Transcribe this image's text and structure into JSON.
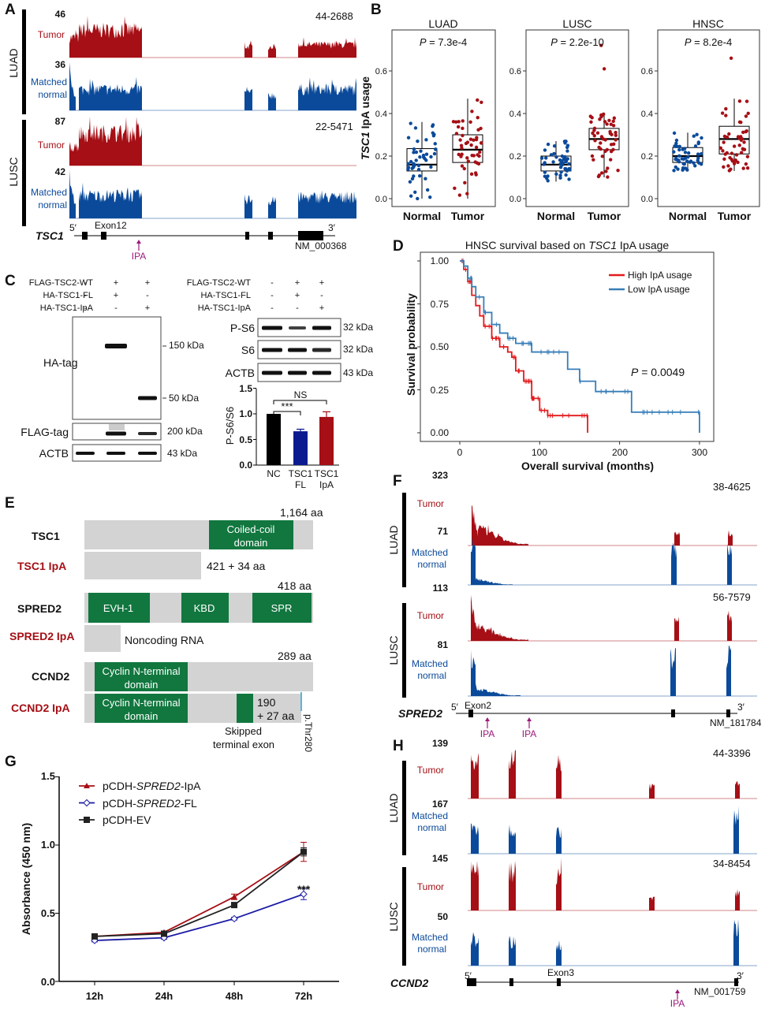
{
  "colors": {
    "tumor": "#a50f15",
    "normal": "#0b4a9a",
    "domain": "#11773f",
    "protein_bar": "#d3d3d3",
    "ipa_arrow": "#9c1a7a",
    "km_high": "#e41a1c",
    "km_low": "#377eb8",
    "bar_nc": "#000000",
    "bar_fl": "#0b1a8f",
    "bar_ipa": "#a50f15"
  },
  "a": {
    "label": "A",
    "luad": "LUAD",
    "lusc": "LUSC",
    "tumor": "Tumor",
    "matched": "Matched",
    "normal": "normal",
    "max": [
      "46",
      "36",
      "87",
      "42"
    ],
    "samples": [
      "44-2688",
      "22-5471"
    ],
    "gene": "TSC1",
    "five": "5′",
    "three": "3′",
    "exon": "Exon12",
    "ipa": "IPA",
    "refseq": "NM_000368"
  },
  "b": {
    "label": "B",
    "ylabel_gene": "TSC1",
    "ylabel_rest": " IpA usage",
    "p_prefix": "P"
  },
  "c": {
    "label": "C",
    "rows": [
      "FLAG-TSC2-WT",
      "HA-TSC1-FL",
      "HA-TSC1-IpA"
    ],
    "signs": [
      [
        "-",
        "+",
        "+"
      ],
      [
        "-",
        "+",
        "-"
      ],
      [
        "-",
        "-",
        "+"
      ]
    ],
    "blots_left": [
      "HA-tag",
      "FLAG-tag",
      "ACTB"
    ],
    "sizes_left": [
      "150 kDa",
      "50 kDa",
      "200 kDa",
      "43 kDa"
    ],
    "blots_right": [
      "P-S6",
      "S6",
      "ACTB"
    ],
    "sizes_right": [
      "32 kDa",
      "32 kDa",
      "43 kDa"
    ]
  },
  "d": {
    "label": "D"
  },
  "e": {
    "label": "E",
    "tsc1": "TSC1",
    "tsc1_len": "1,164 aa",
    "coiled_1": "Coiled-coil",
    "coiled_2": "domain",
    "tsc1_ipa": "TSC1 IpA",
    "tsc1_ipa_len": "421 + 34 aa",
    "spred2": "SPRED2",
    "spred2_len": "418 aa",
    "evh1": "EVH-1",
    "kbd": "KBD",
    "spr": "SPR",
    "spred2_ipa": "SPRED2 IpA",
    "noncoding": "Noncoding RNA",
    "ccnd2": "CCND2",
    "ccnd2_len": "289 aa",
    "cyclin_1": "Cyclin N-terminal",
    "cyclin_2": "domain",
    "ccnd2_ipa": "CCND2 IpA",
    "ccnd2_ipa_len_1": "190",
    "ccnd2_ipa_len_2": "+ 27 aa",
    "skipped_1": "Skipped",
    "skipped_2": "terminal exon",
    "mutation": "p.Thr280"
  },
  "f": {
    "label": "F",
    "luad": "LUAD",
    "lusc": "LUSC",
    "tumor": "Tumor",
    "matched": "Matched",
    "normal": "normal",
    "max": [
      "323",
      "71",
      "113",
      "81"
    ],
    "samples": [
      "38-4625",
      "56-7579"
    ],
    "gene": "SPRED2",
    "five": "5′",
    "three": "3′",
    "exon": "Exon2",
    "ipa": "IPA",
    "refseq": "NM_181784"
  },
  "g": {
    "label": "G",
    "significance": "***"
  },
  "h": {
    "label": "H",
    "luad": "LUAD",
    "lusc": "LUSC",
    "tumor": "Tumor",
    "matched": "Matched",
    "normal": "normal",
    "max": [
      "139",
      "167",
      "145",
      "50"
    ],
    "samples": [
      "44-3396",
      "34-8454"
    ],
    "gene": "CCND2",
    "five": "5′",
    "three": "3′",
    "exon": "Exon3",
    "ipa": "IPA",
    "refseq": "NM_001759"
  },
  "chart_data": [
    {
      "panel": "B",
      "type": "box",
      "ylabel": "TSC1 IpA usage",
      "ylim": [
        -0.04,
        0.79
      ],
      "yticks": [
        "0.0",
        "0.2",
        "0.4",
        "0.6"
      ],
      "categories": [
        "Normal",
        "Tumor"
      ],
      "plots": [
        {
          "title": "LUAD",
          "p_value": "= 7.3e-4",
          "boxes": [
            {
              "q1": 0.13,
              "median": 0.16,
              "q3": 0.235,
              "whisker_low": 0.0,
              "whisker_high": 0.36,
              "outliers": []
            },
            {
              "q1": 0.17,
              "median": 0.23,
              "q3": 0.3,
              "whisker_low": 0.0,
              "whisker_high": 0.47,
              "outliers": []
            }
          ]
        },
        {
          "title": "LUSC",
          "p_value": "= 2.2e-10",
          "boxes": [
            {
              "q1": 0.13,
              "median": 0.16,
              "q3": 0.2,
              "whisker_low": 0.08,
              "whisker_high": 0.27,
              "outliers": []
            },
            {
              "q1": 0.23,
              "median": 0.28,
              "q3": 0.33,
              "whisker_low": 0.1,
              "whisker_high": 0.4,
              "outliers": [
                0.61,
                0.72
              ]
            }
          ]
        },
        {
          "title": "HNSC",
          "p_value": "= 8.2e-4",
          "boxes": [
            {
              "q1": 0.17,
              "median": 0.2,
              "q3": 0.24,
              "whisker_low": 0.13,
              "whisker_high": 0.31,
              "outliers": []
            },
            {
              "q1": 0.21,
              "median": 0.28,
              "q3": 0.34,
              "whisker_low": 0.13,
              "whisker_high": 0.47,
              "outliers": [
                0.66
              ]
            }
          ]
        }
      ]
    },
    {
      "panel": "C",
      "type": "bar",
      "ylabel": "P-S6/S6",
      "ylim": [
        0,
        1.5
      ],
      "yticks": [
        "0.0",
        "0.5",
        "1.0",
        "1.5"
      ],
      "categories": [
        [
          "NC"
        ],
        [
          "TSC1",
          "FL"
        ],
        [
          "TSC1",
          "IpA"
        ]
      ],
      "values": [
        1.0,
        0.66,
        0.94
      ],
      "errors": [
        0,
        0.04,
        0.1
      ],
      "annotations": [
        "***",
        "NS"
      ]
    },
    {
      "panel": "D",
      "type": "line",
      "title_pre": "HNSC survival based on ",
      "title_gene": "TSC1",
      "title_post": " IpA usage",
      "xlabel": "Overall survival (months)",
      "ylabel": "Survival probability",
      "xlim": [
        0,
        300
      ],
      "ylim": [
        0,
        1
      ],
      "xticks": [
        "0",
        "100",
        "200",
        "300"
      ],
      "yticks": [
        "0.00",
        "0.25",
        "0.50",
        "0.75",
        "1.00"
      ],
      "p_value": "= 0.0049",
      "legend": "top-right",
      "series": [
        {
          "name": "High IpA usage",
          "x": [
            0,
            5,
            10,
            15,
            20,
            25,
            30,
            40,
            50,
            60,
            65,
            70,
            80,
            90,
            100,
            110,
            125,
            160
          ],
          "y": [
            1.0,
            0.95,
            0.88,
            0.8,
            0.74,
            0.68,
            0.62,
            0.55,
            0.5,
            0.47,
            0.44,
            0.36,
            0.3,
            0.2,
            0.13,
            0.1,
            0.1,
            0.0
          ]
        },
        {
          "name": "Low IpA usage",
          "x": [
            0,
            5,
            10,
            15,
            20,
            30,
            40,
            50,
            60,
            70,
            90,
            130,
            135,
            150,
            170,
            210,
            215,
            298,
            300
          ],
          "y": [
            1.0,
            0.97,
            0.9,
            0.85,
            0.79,
            0.7,
            0.63,
            0.58,
            0.55,
            0.52,
            0.47,
            0.47,
            0.37,
            0.3,
            0.24,
            0.24,
            0.12,
            0.12,
            0.0
          ]
        }
      ]
    },
    {
      "panel": "G",
      "type": "line",
      "ylabel": "Absorbance (450 nm)",
      "ylim": [
        0,
        1.5
      ],
      "yticks": [
        "0.0",
        "0.5",
        "1.0",
        "1.5"
      ],
      "categories": [
        "12h",
        "24h",
        "48h",
        "72h"
      ],
      "legend": "top-left",
      "series": [
        {
          "name_pre": "pCDH-",
          "name_gene": "SPRED2",
          "name_post": "-IpA",
          "values": [
            0.33,
            0.36,
            0.62,
            0.95
          ],
          "errors": [
            0.01,
            0.01,
            0.02,
            0.07
          ]
        },
        {
          "name_pre": "pCDH-",
          "name_gene": "SPRED2",
          "name_post": "-FL",
          "values": [
            0.3,
            0.32,
            0.46,
            0.64
          ],
          "errors": [
            0.01,
            0.01,
            0.01,
            0.04
          ]
        },
        {
          "name_pre": "pCDH-EV",
          "name_gene": "",
          "name_post": "",
          "values": [
            0.33,
            0.35,
            0.56,
            0.95
          ],
          "errors": [
            0.01,
            0.01,
            0.01,
            0.03
          ]
        }
      ]
    }
  ]
}
